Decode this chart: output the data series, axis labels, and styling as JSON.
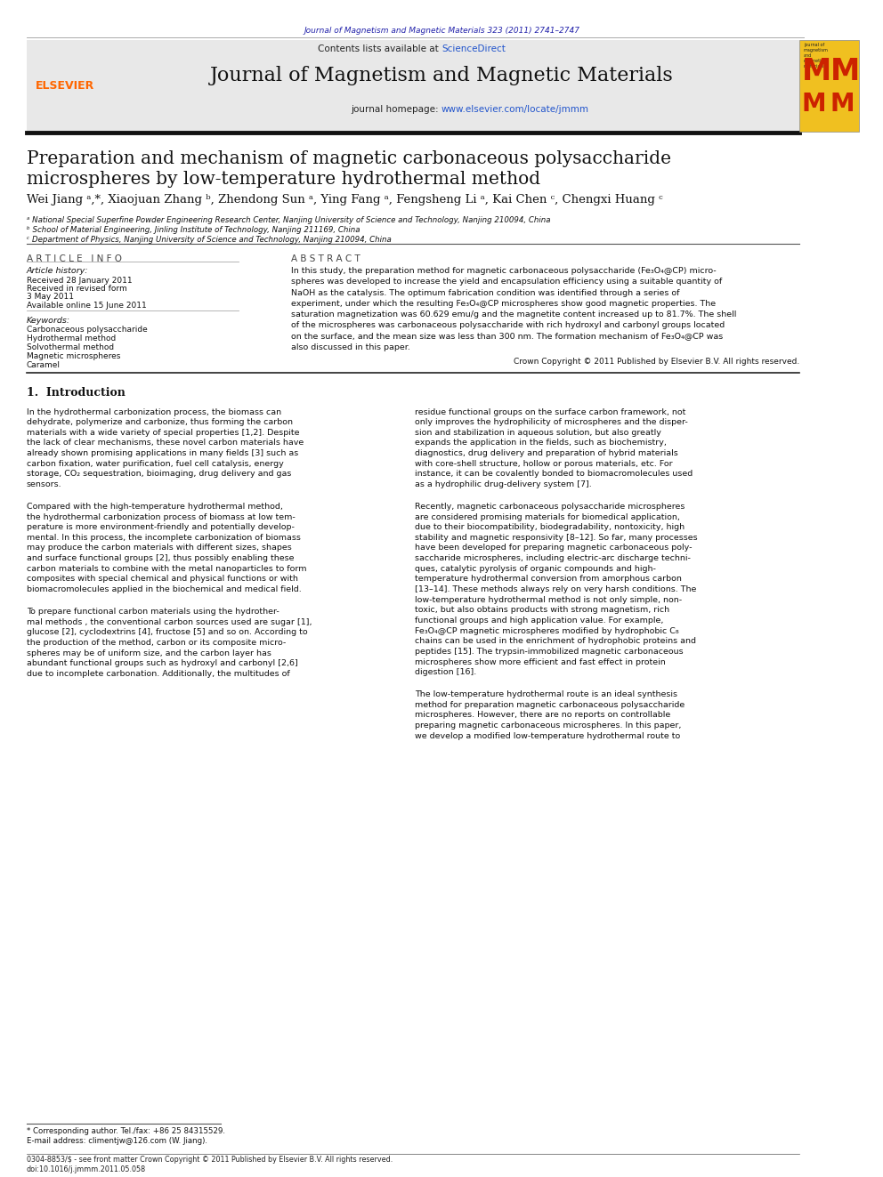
{
  "page_width": 9.92,
  "page_height": 13.23,
  "background_color": "#ffffff",
  "top_journal_ref": "Journal of Magnetism and Magnetic Materials 323 (2011) 2741–2747",
  "top_journal_ref_color": "#2222aa",
  "header_bg": "#e8e8e8",
  "contents_line": "Contents lists available at ",
  "science_direct": "ScienceDirect",
  "science_direct_color": "#2255cc",
  "journal_title": "Journal of Magnetism and Magnetic Materials",
  "journal_homepage_prefix": "journal homepage: ",
  "journal_homepage_url": "www.elsevier.com/locate/jmmm",
  "journal_homepage_url_color": "#2255cc",
  "elsevier_color": "#ff6600",
  "paper_title_line1": "Preparation and mechanism of magnetic carbonaceous polysaccharide",
  "paper_title_line2": "microspheres by low-temperature hydrothermal method",
  "authors": "Wei Jiang ᵃ,*, Xiaojuan Zhang ᵇ, Zhendong Sun ᵃ, Ying Fang ᵃ, Fengsheng Li ᵃ, Kai Chen ᶜ, Chengxi Huang ᶜ",
  "affil_a": "ᵃ National Special Superfine Powder Engineering Research Center, Nanjing University of Science and Technology, Nanjing 210094, China",
  "affil_b": "ᵇ School of Material Engineering, Jinling Institute of Technology, Nanjing 211169, China",
  "affil_c": "ᶜ Department of Physics, Nanjing University of Science and Technology, Nanjing 210094, China",
  "article_info_title": "A R T I C L E   I N F O",
  "article_history_title": "Article history:",
  "received": "Received 28 January 2011",
  "received_revised": "Received in revised form",
  "received_date": "3 May 2011",
  "available": "Available online 15 June 2011",
  "keywords_title": "Keywords:",
  "keywords": [
    "Carbonaceous polysaccharide",
    "Hydrothermal method",
    "Solvothermal method",
    "Magnetic microspheres",
    "Caramel"
  ],
  "abstract_title": "A B S T R A C T",
  "abstract_text": "In this study, the preparation method for magnetic carbonaceous polysaccharide (Fe₃O₄@CP) micro-\nspheres was developed to increase the yield and encapsulation efficiency using a suitable quantity of\nNaOH as the catalysis. The optimum fabrication condition was identified through a series of\nexperiment, under which the resulting Fe₃O₄@CP microspheres show good magnetic properties. The\nsaturation magnetization was 60.629 emu/g and the magnetite content increased up to 81.7%. The shell\nof the microspheres was carbonaceous polysaccharide with rich hydroxyl and carbonyl groups located\non the surface, and the mean size was less than 300 nm. The formation mechanism of Fe₃O₄@CP was\nalso discussed in this paper.",
  "copyright_line": "Crown Copyright © 2011 Published by Elsevier B.V. All rights reserved.",
  "intro_title": "1.  Introduction",
  "intro_para1": "In the hydrothermal carbonization process, the biomass can\ndehydrate, polymerize and carbonize, thus forming the carbon\nmaterials with a wide variety of special properties [1,2]. Despite\nthe lack of clear mechanisms, these novel carbon materials have\nalready shown promising applications in many fields [3] such as\ncarbon fixation, water purification, fuel cell catalysis, energy\nstorage, CO₂ sequestration, bioimaging, drug delivery and gas\nsensors.",
  "intro_para2": "Compared with the high-temperature hydrothermal method,\nthe hydrothermal carbonization process of biomass at low tem-\nperature is more environment-friendly and potentially develop-\nmental. In this process, the incomplete carbonization of biomass\nmay produce the carbon materials with different sizes, shapes\nand surface functional groups [2], thus possibly enabling these\ncarbon materials to combine with the metal nanoparticles to form\ncomposites with special chemical and physical functions or with\nbiomacromolecules applied in the biochemical and medical field.",
  "intro_para3": "To prepare functional carbon materials using the hydrother-\nmal methods , the conventional carbon sources used are sugar [1],\nglucose [2], cyclodextrins [4], fructose [5] and so on. According to\nthe production of the method, carbon or its composite micro-\nspheres may be of uniform size, and the carbon layer has\nabundant functional groups such as hydroxyl and carbonyl [2,6]\ndue to incomplete carbonation. Additionally, the multitudes of",
  "right_para1": "residue functional groups on the surface carbon framework, not\nonly improves the hydrophilicity of microspheres and the disper-\nsion and stabilization in aqueous solution, but also greatly\nexpands the application in the fields, such as biochemistry,\ndiagnostics, drug delivery and preparation of hybrid materials\nwith core-shell structure, hollow or porous materials, etc. For\ninstance, it can be covalently bonded to biomacromolecules used\nas a hydrophilic drug-delivery system [7].",
  "right_para2": "Recently, magnetic carbonaceous polysaccharide microspheres\nare considered promising materials for biomedical application,\ndue to their biocompatibility, biodegradability, nontoxicity, high\nstability and magnetic responsivity [8–12]. So far, many processes\nhave been developed for preparing magnetic carbonaceous poly-\nsaccharide microspheres, including electric-arc discharge techni-\nques, catalytic pyrolysis of organic compounds and high-\ntemperature hydrothermal conversion from amorphous carbon\n[13–14]. These methods always rely on very harsh conditions. The\nlow-temperature hydrothermal method is not only simple, non-\ntoxic, but also obtains products with strong magnetism, rich\nfunctional groups and high application value. For example,\nFe₃O₄@CP magnetic microspheres modified by hydrophobic C₈\nchains can be used in the enrichment of hydrophobic proteins and\npeptides [15]. The trypsin-immobilized magnetic carbonaceous\nmicrospheres show more efficient and fast effect in protein\ndigestion [16].",
  "right_para3": "The low-temperature hydrothermal route is an ideal synthesis\nmethod for preparation magnetic carbonaceous polysaccharide\nmicrospheres. However, there are no reports on controllable\npreparing magnetic carbonaceous microspheres. In this paper,\nwe develop a modified low-temperature hydrothermal route to",
  "footnote": "* Corresponding author. Tel./fax: +86 25 84315529.",
  "footnote2": "E-mail address: climentjw@126.com (W. Jiang).",
  "bottom_line1": "0304-8853/$ - see front matter Crown Copyright © 2011 Published by Elsevier B.V. All rights reserved.",
  "bottom_line2": "doi:10.1016/j.jmmm.2011.05.058"
}
